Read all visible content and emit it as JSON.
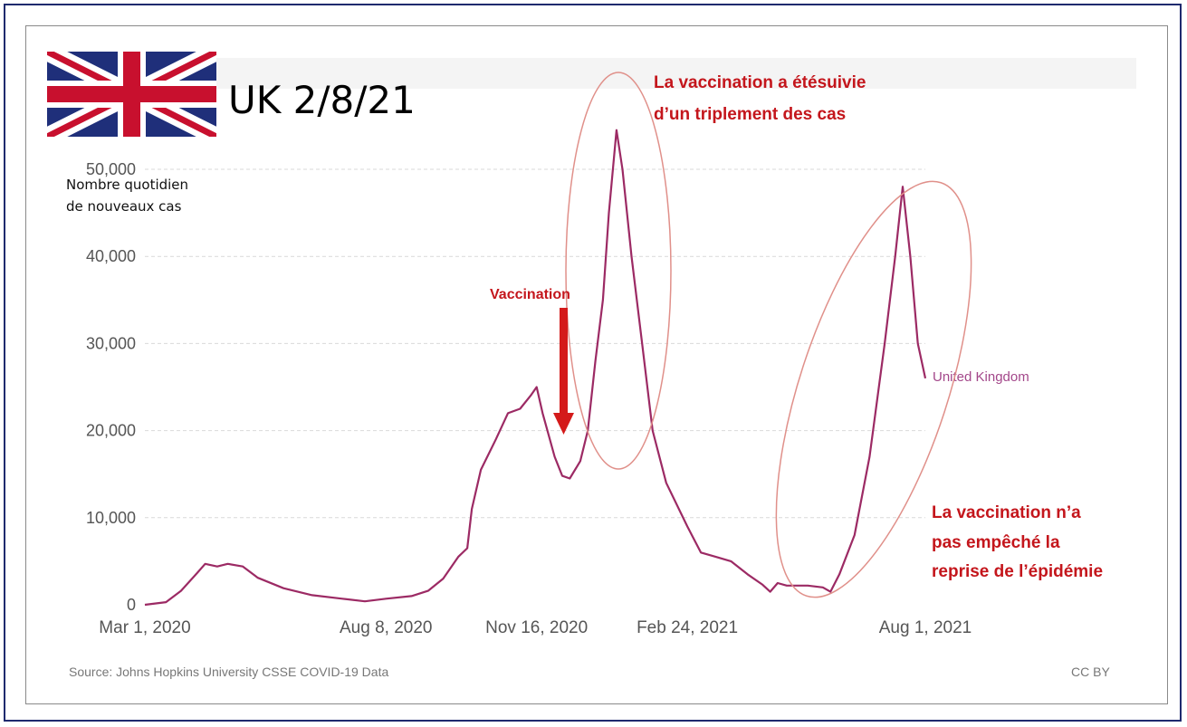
{
  "header": {
    "title": "UK 2/8/21",
    "flag_icon": "uk-flag-icon"
  },
  "annotations": {
    "vaccination_label": "Vaccination",
    "tripling_line1": "La vaccination a étésuivie",
    "tripling_line2": "d’un triplement des cas",
    "resurgence_line1": "La vaccination n’a",
    "resurgence_line2": "pas empêché la",
    "resurgence_line3": "reprise de l’épidémie"
  },
  "footer": {
    "source": "Source: Johns Hopkins University CSSE COVID-19 Data",
    "license": "CC BY"
  },
  "colors": {
    "series": "#9c2a64",
    "annotation": "#c4161c",
    "ellipse": "#e0908a",
    "grid": "#d9d9d9",
    "band": "#f4f4f4"
  },
  "chart_data": {
    "type": "line",
    "ylabel_line1": "Nombre quotidien",
    "ylabel_line2": "de nouveaux cas",
    "ylim": [
      0,
      50000
    ],
    "y_ticks": [
      0,
      10000,
      20000,
      30000,
      40000,
      50000
    ],
    "y_tick_labels": [
      "0",
      "10,000",
      "20,000",
      "30,000",
      "40,000",
      "50,000"
    ],
    "x_tick_labels": [
      "Mar 1, 2020",
      "Aug 8, 2020",
      "Nov 16, 2020",
      "Feb 24, 2021",
      "Aug 1, 2021"
    ],
    "x_tick_dates": [
      "2020-03-01",
      "2020-08-08",
      "2020-11-16",
      "2021-02-24",
      "2021-08-01"
    ],
    "grid": true,
    "series": [
      {
        "name": "United Kingdom",
        "points": [
          [
            "2020-03-01",
            0
          ],
          [
            "2020-03-15",
            300
          ],
          [
            "2020-03-25",
            1600
          ],
          [
            "2020-04-05",
            3700
          ],
          [
            "2020-04-10",
            4700
          ],
          [
            "2020-04-18",
            4400
          ],
          [
            "2020-04-25",
            4700
          ],
          [
            "2020-05-05",
            4400
          ],
          [
            "2020-05-15",
            3100
          ],
          [
            "2020-06-01",
            1900
          ],
          [
            "2020-06-20",
            1100
          ],
          [
            "2020-07-10",
            700
          ],
          [
            "2020-07-25",
            400
          ],
          [
            "2020-08-08",
            700
          ],
          [
            "2020-08-25",
            1000
          ],
          [
            "2020-09-05",
            1600
          ],
          [
            "2020-09-15",
            3000
          ],
          [
            "2020-09-25",
            5500
          ],
          [
            "2020-10-01",
            6500
          ],
          [
            "2020-10-04",
            11000
          ],
          [
            "2020-10-10",
            15500
          ],
          [
            "2020-10-20",
            19000
          ],
          [
            "2020-10-28",
            22000
          ],
          [
            "2020-11-05",
            22500
          ],
          [
            "2020-11-12",
            24000
          ],
          [
            "2020-11-16",
            25000
          ],
          [
            "2020-11-20",
            22000
          ],
          [
            "2020-11-28",
            17000
          ],
          [
            "2020-12-03",
            14800
          ],
          [
            "2020-12-08",
            14500
          ],
          [
            "2020-12-15",
            16500
          ],
          [
            "2020-12-20",
            20000
          ],
          [
            "2020-12-25",
            28000
          ],
          [
            "2020-12-30",
            35000
          ],
          [
            "2021-01-03",
            45000
          ],
          [
            "2021-01-08",
            54500
          ],
          [
            "2021-01-12",
            50000
          ],
          [
            "2021-01-18",
            40000
          ],
          [
            "2021-01-25",
            30000
          ],
          [
            "2021-02-01",
            20000
          ],
          [
            "2021-02-10",
            14000
          ],
          [
            "2021-02-24",
            9000
          ],
          [
            "2021-03-05",
            6000
          ],
          [
            "2021-03-15",
            5500
          ],
          [
            "2021-03-25",
            5000
          ],
          [
            "2021-04-05",
            3500
          ],
          [
            "2021-04-15",
            2300
          ],
          [
            "2021-04-20",
            1500
          ],
          [
            "2021-04-25",
            2500
          ],
          [
            "2021-05-01",
            2200
          ],
          [
            "2021-05-15",
            2200
          ],
          [
            "2021-05-25",
            2000
          ],
          [
            "2021-05-30",
            1500
          ],
          [
            "2021-06-05",
            3500
          ],
          [
            "2021-06-15",
            8000
          ],
          [
            "2021-06-25",
            17000
          ],
          [
            "2021-07-05",
            30000
          ],
          [
            "2021-07-12",
            40000
          ],
          [
            "2021-07-17",
            48000
          ],
          [
            "2021-07-22",
            40000
          ],
          [
            "2021-07-27",
            30000
          ],
          [
            "2021-08-01",
            26000
          ]
        ]
      }
    ]
  }
}
